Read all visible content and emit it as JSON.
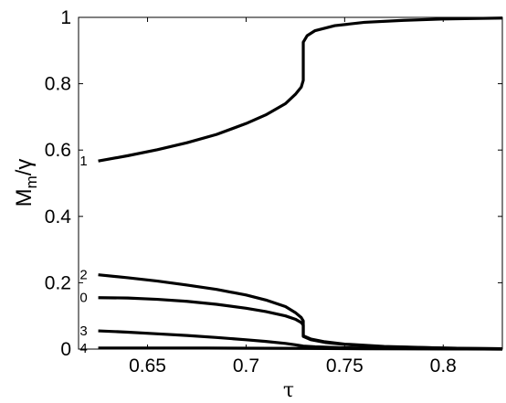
{
  "chart_data": {
    "type": "line",
    "title": "",
    "xlabel": "τ",
    "ylabel": "M",
    "ylabel_sub": "m",
    "ylabel_suffix": "/γ",
    "xlim": [
      0.615,
      0.83
    ],
    "ylim": [
      0,
      1
    ],
    "x_ticks": [
      0.65,
      0.7,
      0.75,
      0.8
    ],
    "x_tick_labels": [
      "0.65",
      "0.7",
      "0.75",
      "0.8"
    ],
    "y_ticks": [
      0,
      0.2,
      0.4,
      0.6,
      0.8,
      1
    ],
    "y_tick_labels": [
      "0",
      "0.2",
      "0.4",
      "0.6",
      "0.8",
      "1"
    ],
    "grid": false,
    "legend": "none",
    "line_color": "#000000",
    "series": [
      {
        "name": "1",
        "x": [
          0.625,
          0.64,
          0.655,
          0.67,
          0.685,
          0.7,
          0.71,
          0.72,
          0.725,
          0.728,
          0.729,
          0.729,
          0.731,
          0.735,
          0.745,
          0.76,
          0.78,
          0.8,
          0.83
        ],
        "y": [
          0.567,
          0.583,
          0.601,
          0.622,
          0.647,
          0.68,
          0.706,
          0.74,
          0.768,
          0.79,
          0.81,
          0.925,
          0.945,
          0.96,
          0.975,
          0.985,
          0.991,
          0.995,
          0.998
        ]
      },
      {
        "name": "2",
        "x": [
          0.625,
          0.64,
          0.655,
          0.67,
          0.685,
          0.7,
          0.71,
          0.72,
          0.725,
          0.728,
          0.729,
          0.729,
          0.733,
          0.74,
          0.75,
          0.77,
          0.8,
          0.83
        ],
        "y": [
          0.224,
          0.215,
          0.205,
          0.193,
          0.18,
          0.163,
          0.148,
          0.128,
          0.11,
          0.095,
          0.085,
          0.04,
          0.03,
          0.022,
          0.015,
          0.008,
          0.003,
          0.001
        ]
      },
      {
        "name": "0",
        "x": [
          0.625,
          0.64,
          0.655,
          0.67,
          0.685,
          0.7,
          0.71,
          0.72,
          0.725,
          0.728,
          0.729,
          0.729,
          0.733,
          0.74,
          0.75,
          0.77,
          0.8,
          0.83
        ],
        "y": [
          0.155,
          0.154,
          0.15,
          0.144,
          0.135,
          0.123,
          0.113,
          0.1,
          0.09,
          0.08,
          0.072,
          0.038,
          0.028,
          0.02,
          0.014,
          0.007,
          0.003,
          0.001
        ]
      },
      {
        "name": "3",
        "x": [
          0.625,
          0.64,
          0.655,
          0.67,
          0.685,
          0.7,
          0.71,
          0.72,
          0.725,
          0.728,
          0.729,
          0.735,
          0.75,
          0.77,
          0.8,
          0.83
        ],
        "y": [
          0.055,
          0.051,
          0.046,
          0.041,
          0.035,
          0.028,
          0.023,
          0.017,
          0.013,
          0.01,
          0.009,
          0.007,
          0.004,
          0.002,
          0.001,
          0.0
        ]
      },
      {
        "name": "4",
        "x": [
          0.625,
          0.68,
          0.729,
          0.76,
          0.83
        ],
        "y": [
          0.003,
          0.003,
          0.002,
          0.001,
          0.0
        ]
      }
    ]
  }
}
